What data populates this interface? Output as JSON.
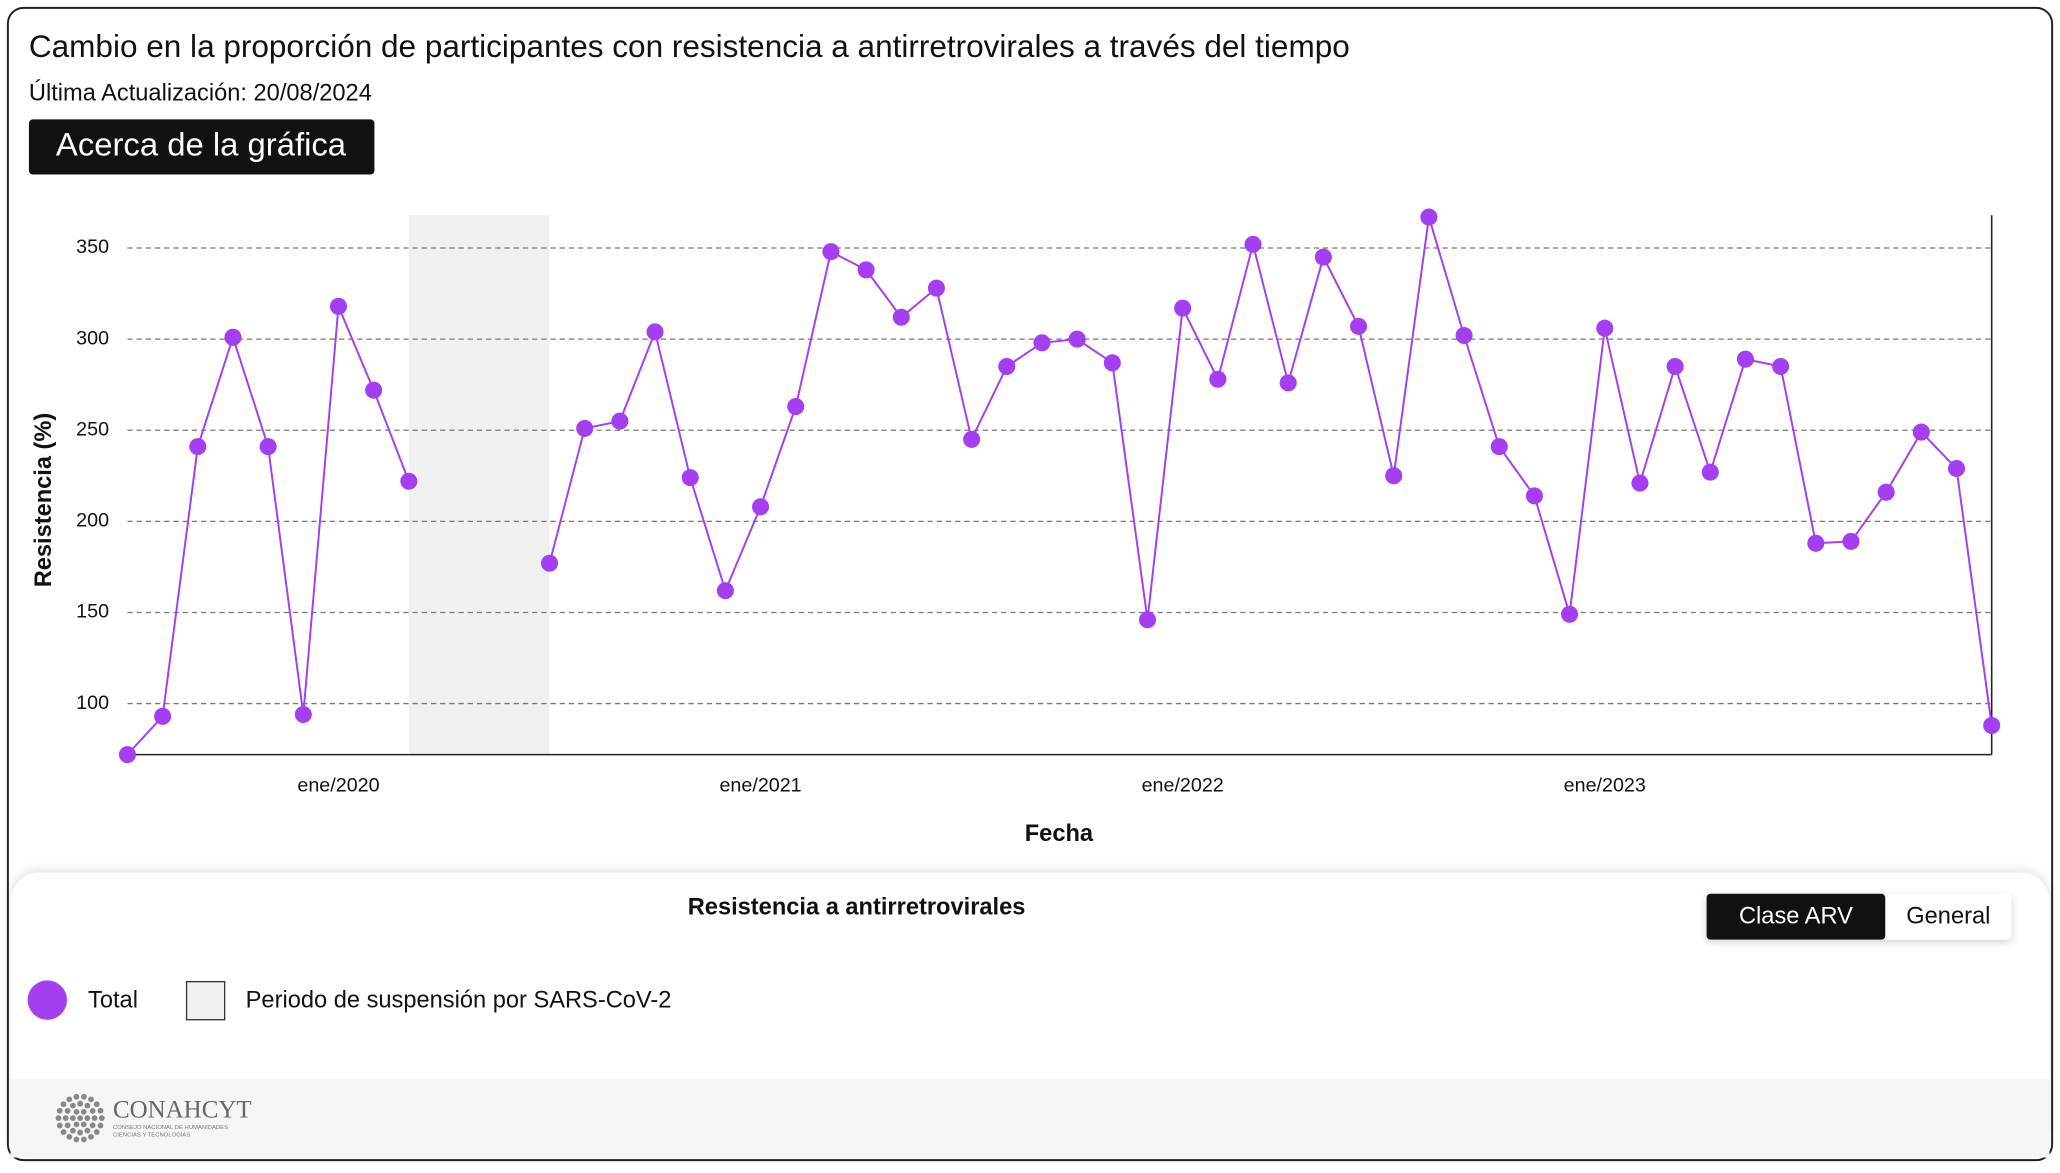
{
  "chart_data": {
    "type": "line",
    "title": "Cambio en la proporción de participantes con resistencia a antirretrovirales a través del tiempo",
    "subtitle": "Última Actualización: 20/08/2024",
    "about_button": "Acerca de la gráfica",
    "xlabel": "Fecha",
    "ylabel": "Resistencia (%)",
    "categories": [
      null,
      null,
      null,
      null,
      null,
      null,
      "ene/2020",
      null,
      null,
      null,
      null,
      null,
      null,
      null,
      null,
      null,
      null,
      null,
      "ene/2021",
      null,
      null,
      null,
      null,
      null,
      null,
      null,
      null,
      null,
      null,
      null,
      "ene/2022",
      null,
      null,
      null,
      null,
      null,
      null,
      null,
      null,
      null,
      null,
      null,
      "ene/2023",
      null,
      null,
      null,
      null,
      null,
      null,
      null,
      null,
      null,
      null,
      null
    ],
    "series": [
      {
        "name": "Total",
        "color": "#a33ff0",
        "values": [
          72,
          93,
          241,
          301,
          241,
          94,
          318,
          272,
          222,
          null,
          null,
          null,
          177,
          251,
          255,
          304,
          224,
          162,
          208,
          263,
          348,
          338,
          312,
          328,
          245,
          285,
          298,
          300,
          287,
          146,
          317,
          278,
          352,
          276,
          345,
          307,
          225,
          367,
          302,
          241,
          214,
          149,
          306,
          221,
          285,
          227,
          289,
          285,
          188,
          189,
          216,
          249,
          229,
          88
        ]
      }
    ],
    "band_label": "Periodo de suspensión por SARS-CoV-2",
    "band_color": "#f0f0f0",
    "ylim": [
      72,
      368
    ],
    "yticks": [
      100,
      150,
      200,
      250,
      300,
      350
    ],
    "grid": true
  },
  "legend_panel": {
    "title": "Resistencia a antirretrovirales",
    "toggle": [
      "Clase ARV",
      "General"
    ]
  },
  "footer": {
    "logo": "CONAHCYT",
    "logo_subtitle": [
      "CONSEJO NACIONAL DE HUMANIDADES",
      "CIENCIAS Y TECNOLOGÍAS"
    ]
  }
}
